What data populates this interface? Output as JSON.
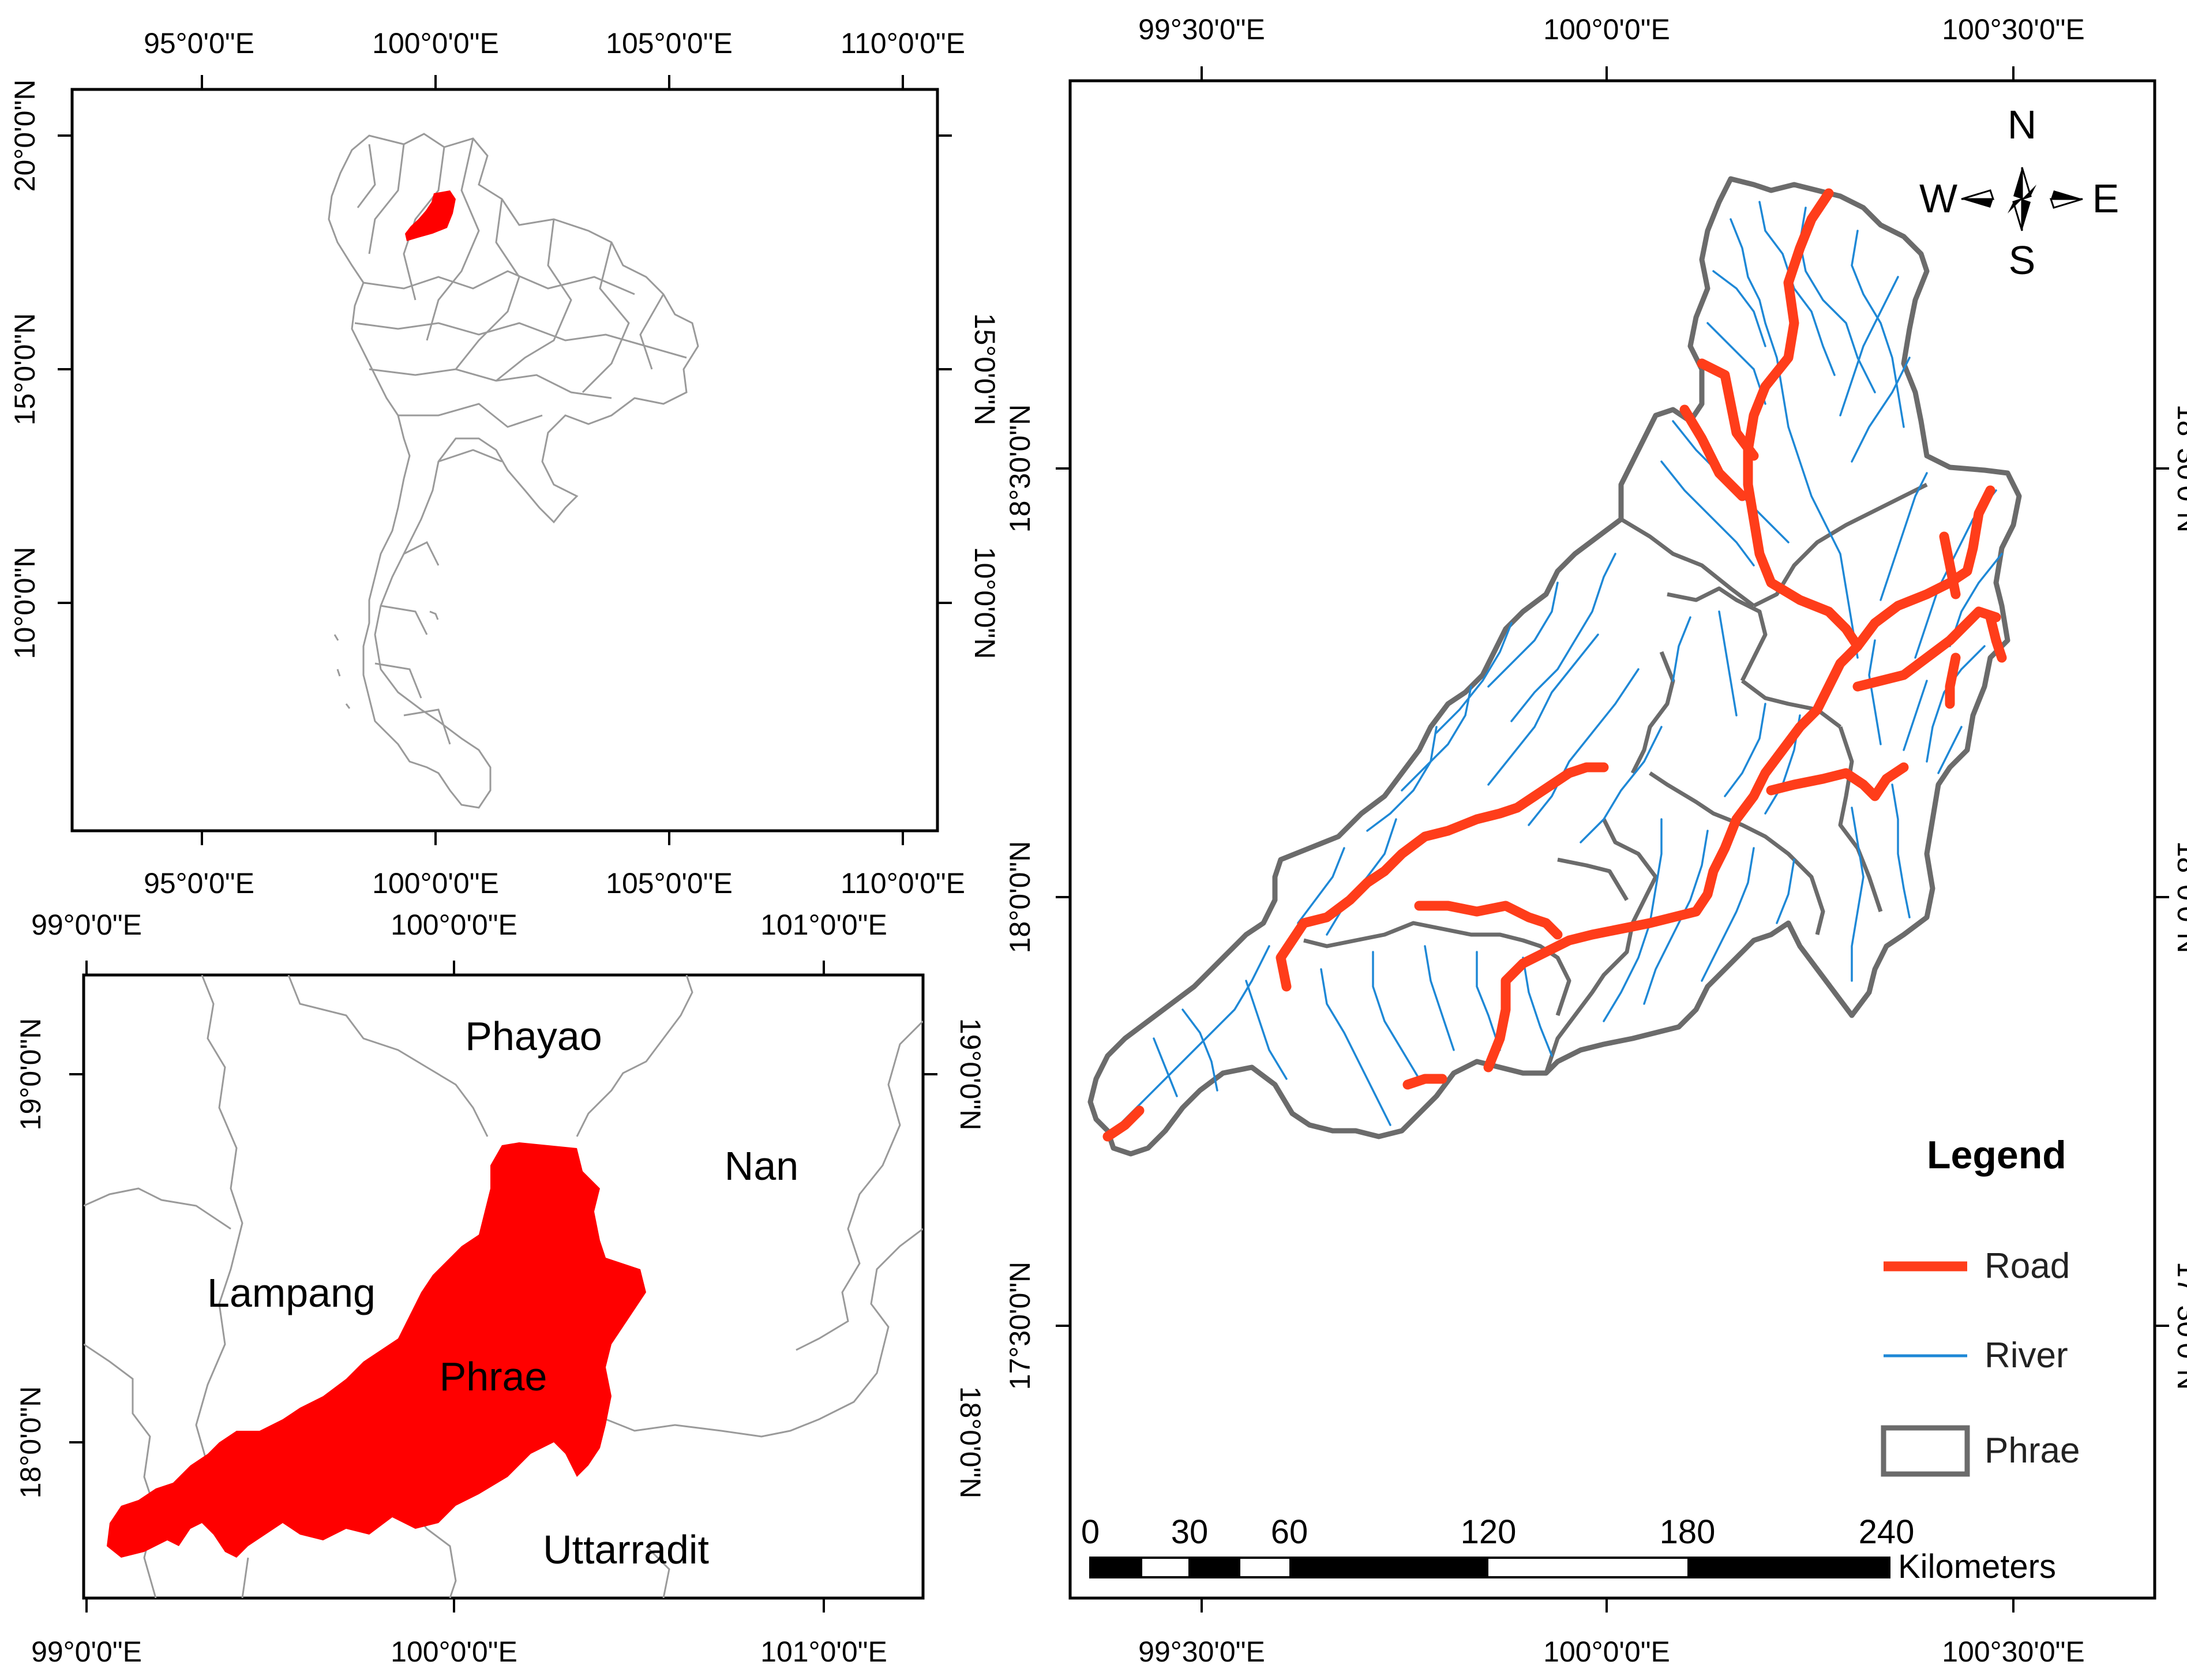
{
  "inset_thailand": {
    "x_labels": [
      "95°0'0\"E",
      "100°0'0\"E",
      "105°0'0\"E",
      "110°0'0\"E"
    ],
    "y_labels": [
      "20°0'0\"N",
      "15°0'0\"N",
      "10°0'0\"N"
    ]
  },
  "inset_provinces": {
    "x_labels": [
      "99°0'0\"E",
      "100°0'0\"E",
      "101°0'0\"E"
    ],
    "y_labels": [
      "19°0'0\"N",
      "18°0'0\"N"
    ],
    "names": {
      "phayao": "Phayao",
      "nan": "Nan",
      "lampang": "Lampang",
      "phrae": "Phrae",
      "uttarradit": "Uttarradit"
    },
    "colors": {
      "phrae": "#ff0000",
      "boundary": "#9a9a9a"
    }
  },
  "main_map": {
    "x_labels": [
      "99°30'0\"E",
      "100°0'0\"E",
      "100°30'0\"E"
    ],
    "y_labels": [
      "18°30'0\"N",
      "18°0'0\"N",
      "17°30'0\"N"
    ],
    "north_arrow": {
      "n": "N",
      "s": "S",
      "e": "E",
      "w": "W"
    },
    "legend": {
      "title": "Legend",
      "items": [
        {
          "label": "Road",
          "color": "#ff3d1a"
        },
        {
          "label": "River",
          "color": "#1e88d6"
        },
        {
          "label": "Phrae",
          "color": "#6b6b6b"
        }
      ]
    },
    "scale_bar": {
      "ticks": [
        "0",
        "30",
        "60",
        "120",
        "180",
        "240"
      ],
      "unit": "Kilometers"
    }
  }
}
